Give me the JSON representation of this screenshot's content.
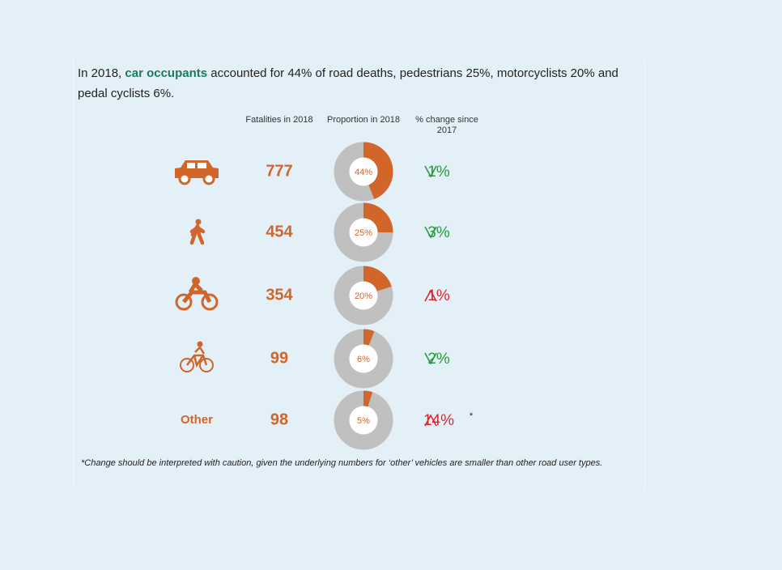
{
  "intro": {
    "prefix": "In 2018, ",
    "highlight": "car occupants",
    "rest": " accounted for 44% of road deaths, pedestrians 25%, motorcyclists 20% and pedal cyclists 6%."
  },
  "headers": [
    "Fatalities in 2018",
    "Proportion in 2018",
    "% change since 2017"
  ],
  "rows": [
    {
      "fatalities": 777,
      "proportion": 44,
      "proportion_label": "44%",
      "change": 1,
      "change_label": "1%",
      "direction": "down"
    },
    {
      "fatalities": 454,
      "proportion": 25,
      "proportion_label": "25%",
      "change": 3,
      "change_label": "3%",
      "direction": "down"
    },
    {
      "fatalities": 354,
      "proportion": 20,
      "proportion_label": "20%",
      "change": 1,
      "change_label": "1%",
      "direction": "up"
    },
    {
      "fatalities": 99,
      "proportion": 6,
      "proportion_label": "6%",
      "change": 2,
      "change_label": "2%",
      "direction": "down"
    },
    {
      "label": "Other",
      "fatalities": 98,
      "proportion": 5,
      "proportion_label": "5%",
      "change": 14,
      "change_label": "14%",
      "direction": "up",
      "note_mark": "*"
    }
  ],
  "footnote": "*Change should be interpreted with caution, given the underlying numbers for ‘other’ vehicles are smaller than other road user types."
}
